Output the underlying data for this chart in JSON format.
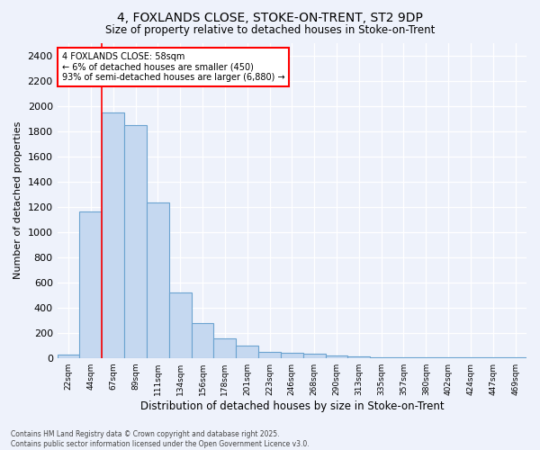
{
  "title1": "4, FOXLANDS CLOSE, STOKE-ON-TRENT, ST2 9DP",
  "title2": "Size of property relative to detached houses in Stoke-on-Trent",
  "xlabel": "Distribution of detached houses by size in Stoke-on-Trent",
  "ylabel": "Number of detached properties",
  "bar_labels": [
    "22sqm",
    "44sqm",
    "67sqm",
    "89sqm",
    "111sqm",
    "134sqm",
    "156sqm",
    "178sqm",
    "201sqm",
    "223sqm",
    "246sqm",
    "268sqm",
    "290sqm",
    "313sqm",
    "335sqm",
    "357sqm",
    "380sqm",
    "402sqm",
    "424sqm",
    "447sqm",
    "469sqm"
  ],
  "bar_values": [
    25,
    1160,
    1950,
    1850,
    1230,
    520,
    275,
    155,
    95,
    45,
    40,
    35,
    18,
    10,
    5,
    4,
    3,
    2,
    2,
    2,
    2
  ],
  "bar_color": "#c5d8f0",
  "bar_edge_color": "#6ba3d0",
  "vline_color": "red",
  "vline_pos": 1.5,
  "annotation_title": "4 FOXLANDS CLOSE: 58sqm",
  "annotation_line1": "← 6% of detached houses are smaller (450)",
  "annotation_line2": "93% of semi-detached houses are larger (6,880) →",
  "annotation_box_color": "white",
  "annotation_box_edge": "red",
  "ylim": [
    0,
    2500
  ],
  "yticks": [
    0,
    200,
    400,
    600,
    800,
    1000,
    1200,
    1400,
    1600,
    1800,
    2000,
    2200,
    2400
  ],
  "footer1": "Contains HM Land Registry data © Crown copyright and database right 2025.",
  "footer2": "Contains public sector information licensed under the Open Government Licence v3.0.",
  "bg_color": "#eef2fb",
  "grid_color": "white"
}
